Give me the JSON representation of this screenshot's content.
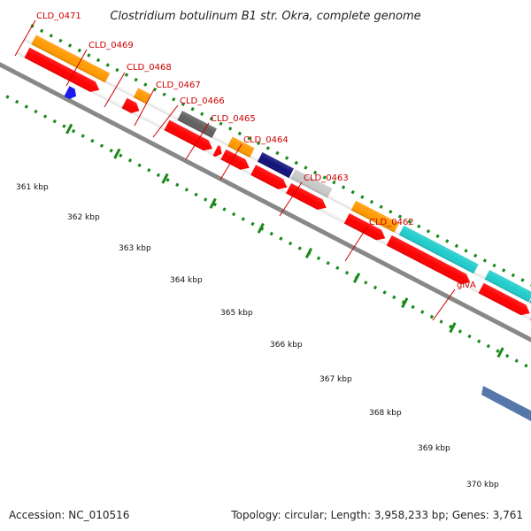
{
  "header": {
    "title": "Clostridium botulinum B1 str. Okra, complete genome"
  },
  "footer": {
    "accession": "Accession: NC_010516",
    "topology": "Topology: circular; Length: 3,958,233 bp; Genes: 3,761"
  },
  "colors": {
    "backbone": "#888888",
    "tick": "#1a8a1a",
    "label": "#cc0000",
    "cds_forward_strand": "#ff0000",
    "orange_feature": "#ff9900",
    "cyan_feature": "#20cccc",
    "dark_gray_feature": "#606060",
    "light_gray_feature": "#c8c8c8",
    "navy_feature": "#10107a",
    "blue_feature": "#1a1aee",
    "slate_feature": "#5577aa"
  },
  "scale": {
    "unit": "kbp",
    "ticks": [
      {
        "label": "361 kbp"
      },
      {
        "label": "362 kbp"
      },
      {
        "label": "363 kbp"
      },
      {
        "label": "364 kbp"
      },
      {
        "label": "365 kbp"
      },
      {
        "label": "366 kbp"
      },
      {
        "label": "367 kbp"
      },
      {
        "label": "368 kbp"
      },
      {
        "label": "369 kbp"
      },
      {
        "label": "370 kbp"
      }
    ]
  },
  "gene_labels": [
    {
      "id": "CLD_0471",
      "text": "CLD_0471"
    },
    {
      "id": "CLD_0469",
      "text": "CLD_0469"
    },
    {
      "id": "CLD_0468",
      "text": "CLD_0468"
    },
    {
      "id": "CLD_0467",
      "text": "CLD_0467"
    },
    {
      "id": "CLD_0466",
      "text": "CLD_0466"
    },
    {
      "id": "CLD_0465",
      "text": "CLD_0465"
    },
    {
      "id": "CLD_0464",
      "text": "CLD_0464"
    },
    {
      "id": "CLD_0463",
      "text": "CLD_0463"
    },
    {
      "id": "CLD_0462",
      "text": "CLD_0462"
    },
    {
      "id": "glvA",
      "text": "glvA"
    }
  ]
}
